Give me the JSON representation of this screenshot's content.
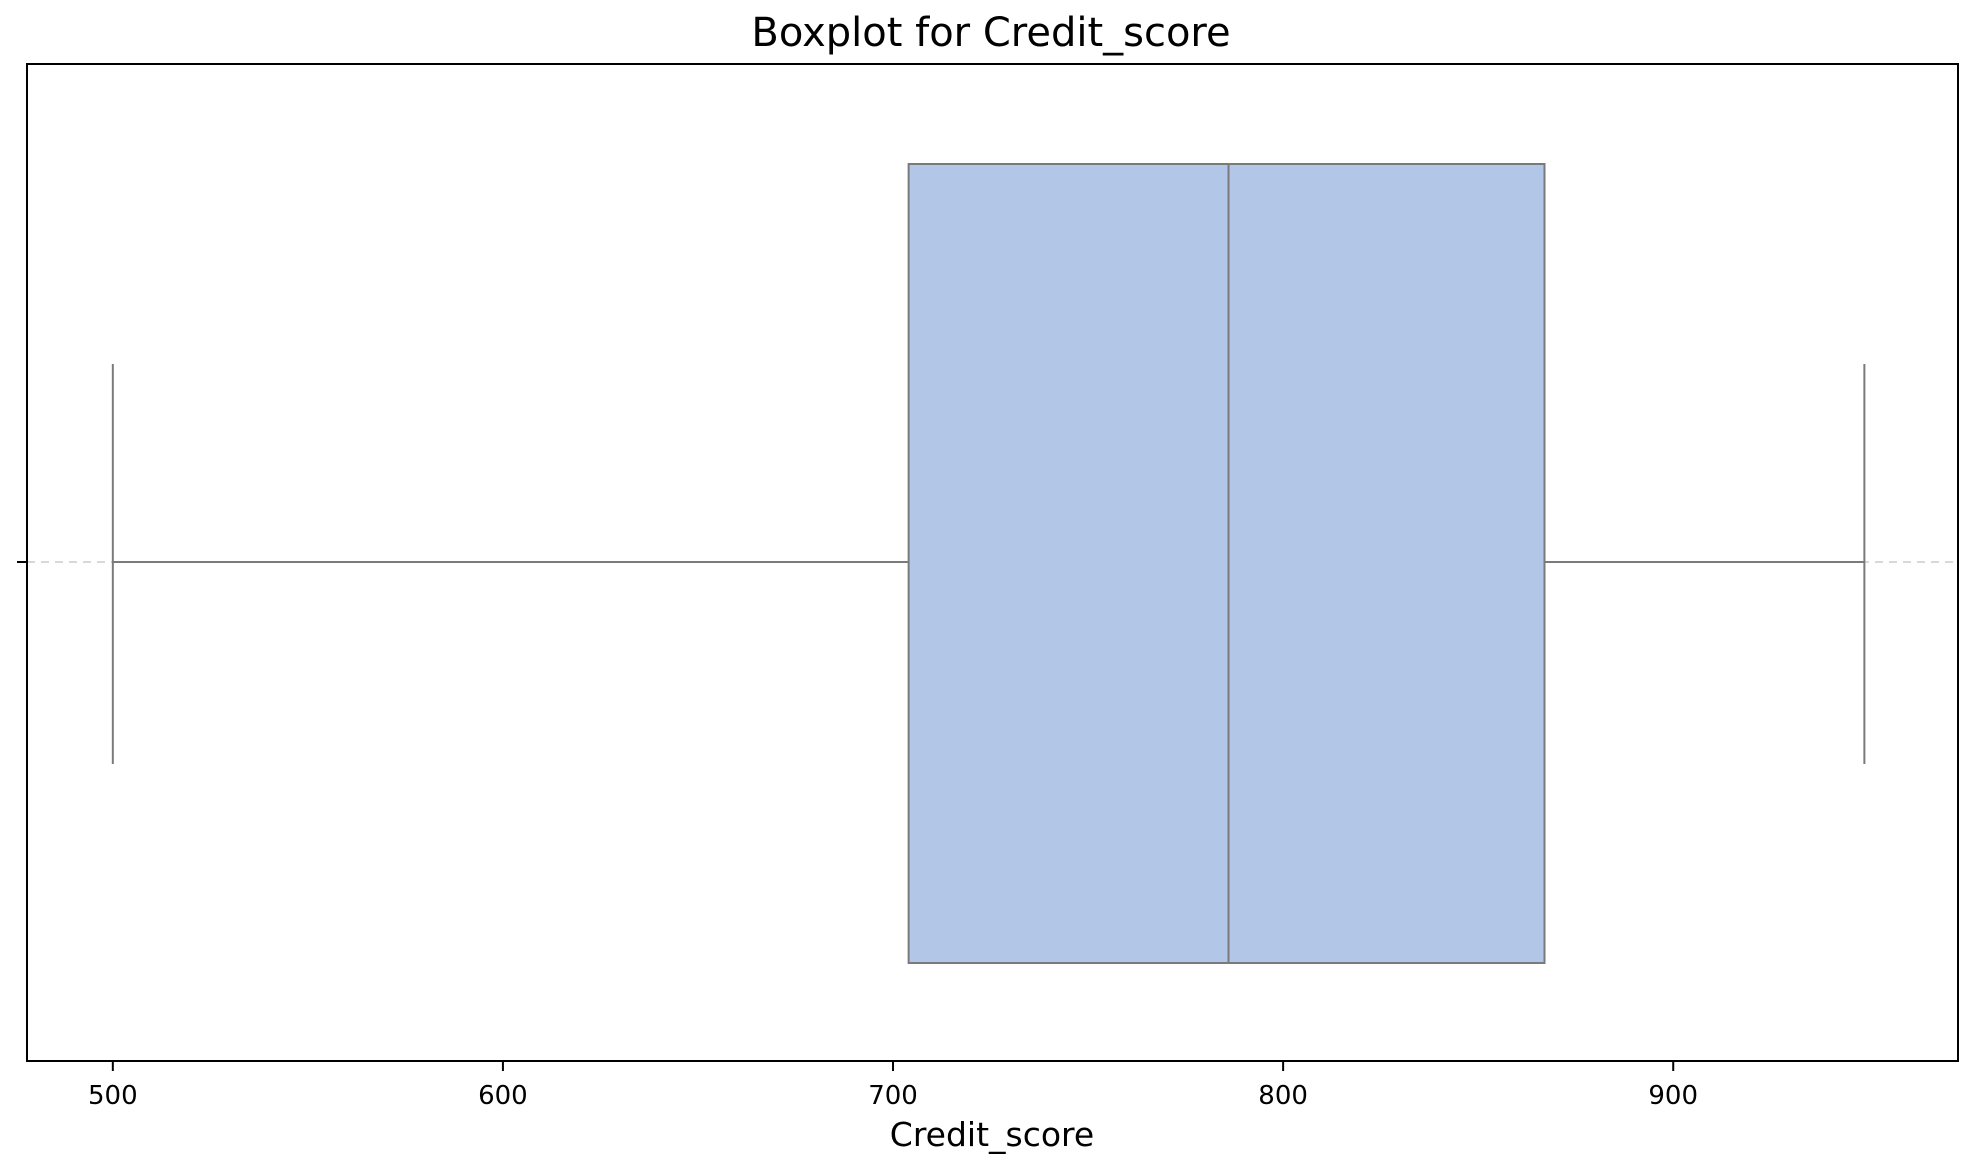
{
  "chart_data": {
    "type": "boxplot",
    "title": "Boxplot for Credit_score",
    "xlabel": "Credit_score",
    "ylabel": "",
    "xlim": [
      478,
      973
    ],
    "xticks": [
      500,
      600,
      700,
      800,
      900
    ],
    "grid": false,
    "series": [
      {
        "whisker_low": 500,
        "q1": 704,
        "median": 786,
        "q3": 867,
        "whisker_high": 949
      }
    ],
    "colors": {
      "box_fill": "#b2c7e7",
      "box_edge": "#7a7a7a",
      "frame": "#000000"
    }
  }
}
